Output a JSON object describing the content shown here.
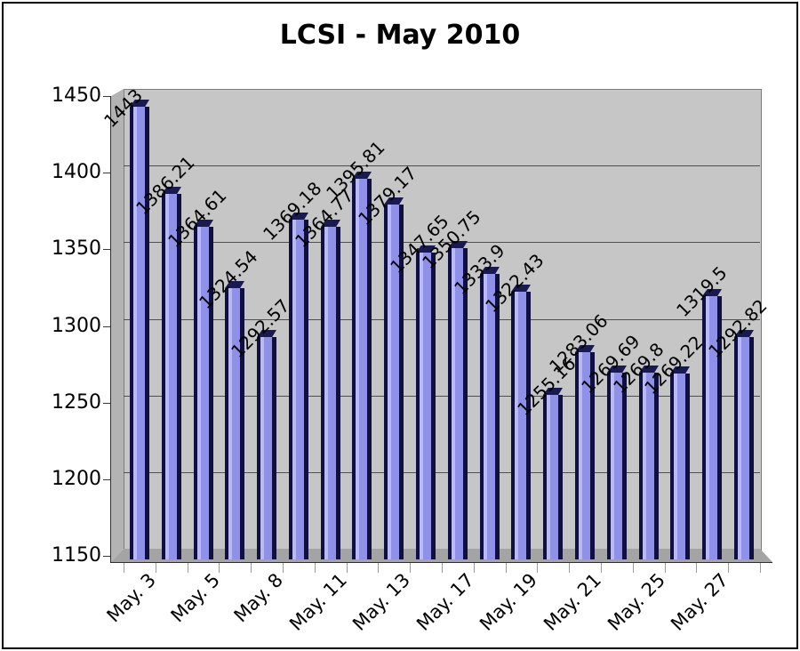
{
  "title": "LCSI - May 2010",
  "chart_data": {
    "type": "bar",
    "title": "LCSI - May 2010",
    "xlabel": "",
    "ylabel": "",
    "ylim": [
      1150,
      1450
    ],
    "yticks": [
      1450,
      1400,
      1350,
      1300,
      1250,
      1200,
      1150
    ],
    "grid": true,
    "legend": false,
    "x_tick_labels": [
      "May. 3",
      "May. 5",
      "May. 8",
      "May. 11",
      "May. 13",
      "May. 17",
      "May. 19",
      "May. 21",
      "May. 25",
      "May. 27"
    ],
    "x_tick_every": 2,
    "values": [
      1443,
      1386.21,
      1364.61,
      1324.54,
      1292.57,
      1369.18,
      1364.77,
      1395.81,
      1379.17,
      1347.65,
      1350.75,
      1333.9,
      1322.43,
      1255.16,
      1283.06,
      1269.69,
      1269.8,
      1269.22,
      1319.5,
      1292.82
    ],
    "bar_labels": [
      "1443",
      "1386.21",
      "1364.61",
      "1324.54",
      "1292.57",
      "1369.18",
      "1364.77",
      "1395.81",
      "1379.17",
      "1347.65",
      "1350.75",
      "1333.9",
      "1322.43",
      "1255.16",
      "1283.06",
      "1269.69",
      "1269.8",
      "1269.22",
      "1319.5",
      "1292.82"
    ],
    "colors": {
      "bar_face": "#8f90e8",
      "bar_highlight": "#b9b9f8",
      "bar_edge": "#101040",
      "wall": "#c6c6c6",
      "wall_side": "#b3b3b3",
      "floor": "#a4a4a4",
      "gridline": "#4f4f4f",
      "text": "#000000",
      "background": "#ffffff"
    }
  }
}
